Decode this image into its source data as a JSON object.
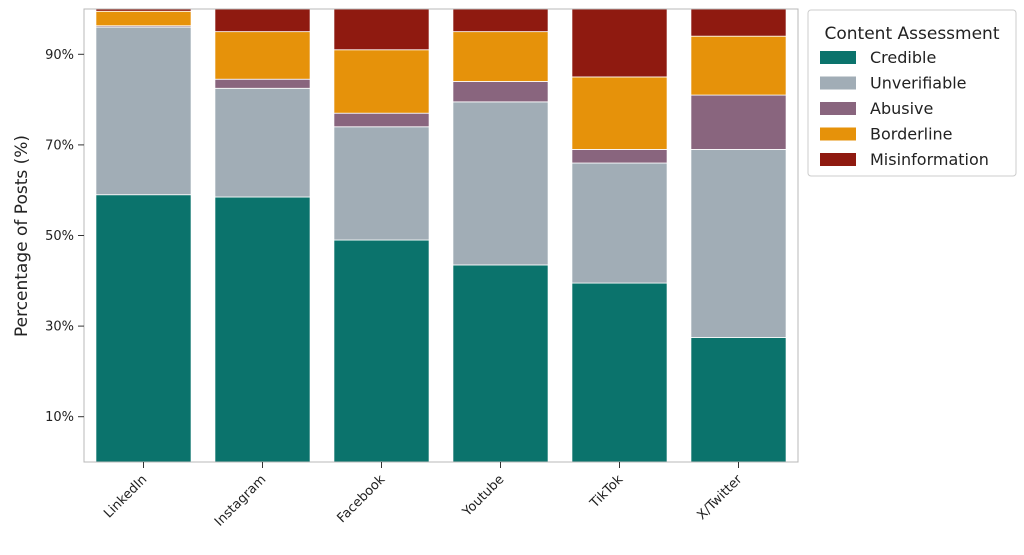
{
  "chart_data": {
    "type": "bar",
    "stacked": true,
    "ylabel": "Percentage of Posts (%)",
    "xlabel": "",
    "ylim": [
      0,
      100
    ],
    "yticks": [
      10,
      30,
      50,
      70,
      90
    ],
    "ytick_labels": [
      "10%",
      "30%",
      "50%",
      "70%",
      "90%"
    ],
    "grid": false,
    "legend": {
      "title": "Content Assessment",
      "placement": "outside-right-top"
    },
    "categories": [
      "LinkedIn",
      "Instagram",
      "Facebook",
      "Youtube",
      "TikTok",
      "X/Twitter"
    ],
    "series": [
      {
        "name": "Credible",
        "color": "#0b736c",
        "values": [
          59,
          58.5,
          49,
          43.5,
          39.5,
          27.5
        ]
      },
      {
        "name": "Unverifiable",
        "color": "#a1adb6",
        "values": [
          37,
          24,
          25,
          36,
          26.5,
          41.5
        ]
      },
      {
        "name": "Abusive",
        "color": "#89657e",
        "values": [
          0.3,
          2,
          3,
          4.5,
          3,
          12
        ]
      },
      {
        "name": "Borderline",
        "color": "#e6920a",
        "values": [
          3.2,
          10.5,
          14,
          11,
          16,
          13
        ]
      },
      {
        "name": "Misinformation",
        "color": "#8f1a10",
        "values": [
          0.5,
          5,
          9,
          5,
          15,
          6
        ]
      }
    ]
  }
}
